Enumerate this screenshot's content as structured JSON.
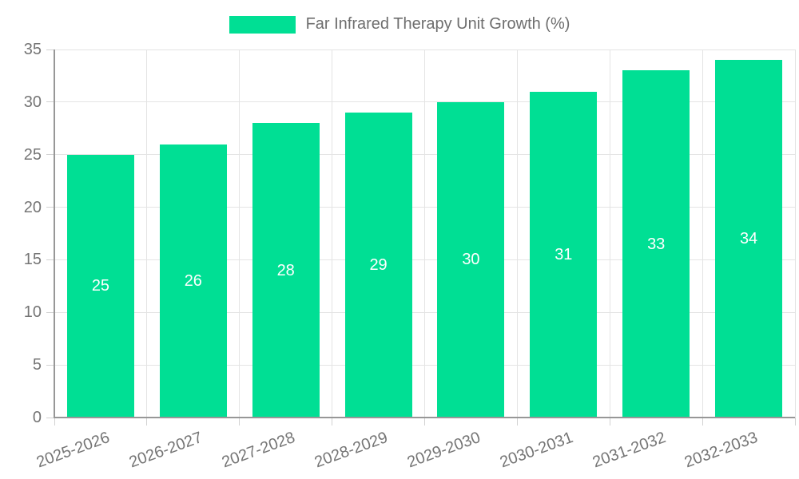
{
  "legend": {
    "label": "Far Infrared Therapy Unit Growth (%)"
  },
  "chart_data": {
    "type": "bar",
    "title": "Far Infrared Therapy Unit Growth (%)",
    "categories": [
      "2025-2026",
      "2026-2027",
      "2027-2028",
      "2028-2029",
      "2029-2030",
      "2030-2031",
      "2031-2032",
      "2032-2033"
    ],
    "values": [
      25,
      26,
      28,
      29,
      30,
      31,
      33,
      34
    ],
    "value_labels": [
      "25",
      "26",
      "28",
      "29",
      "30",
      "31",
      "33",
      "34"
    ],
    "ytick_labels": [
      "0",
      "5",
      "10",
      "15",
      "20",
      "25",
      "30",
      "35"
    ],
    "xlabel": "",
    "ylabel": "",
    "ylim": [
      0,
      35
    ],
    "ytick_step": 5,
    "grid": true,
    "legend_position": "top-center",
    "x_tick_rotation_deg": -20,
    "colors": {
      "bar": "#00DF94",
      "value_label": "#FFFFFF",
      "axis_text": "#757575",
      "legend_text": "#6E6E6E",
      "gridline": "#E4E4E4",
      "tick_mark": "#D2D2D2",
      "axis_line": "#979797",
      "background": "#FFFFFF"
    }
  }
}
